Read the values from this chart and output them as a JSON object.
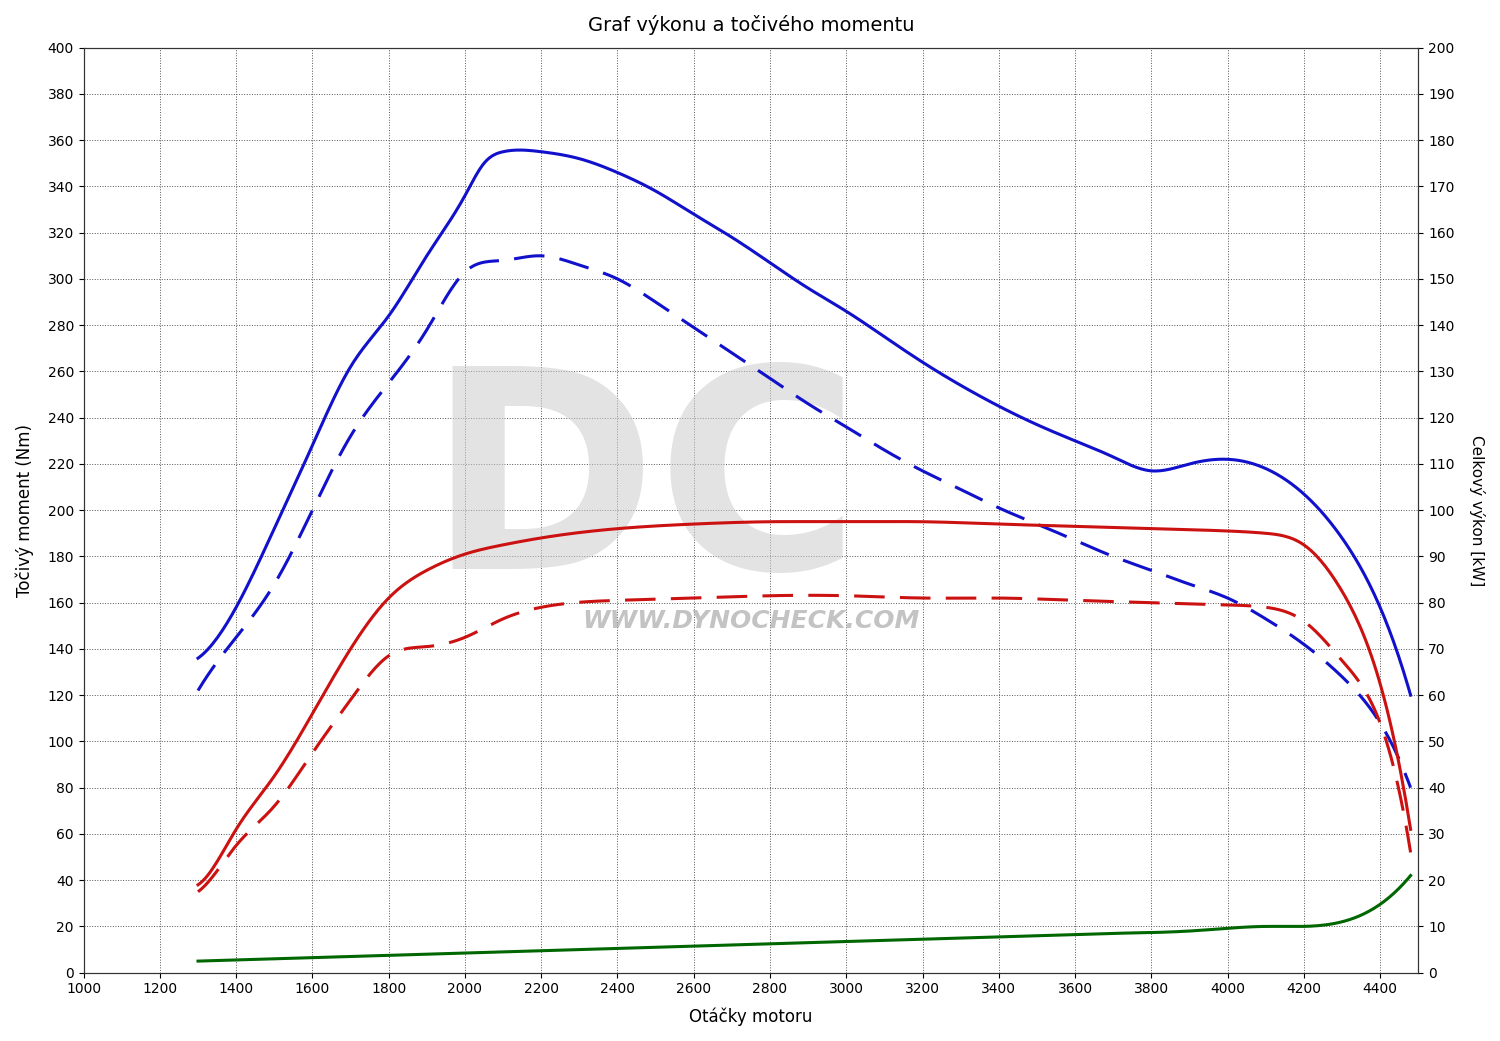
{
  "title": "Graf výkonu a točivého momentu",
  "xlabel": "Otáčky motoru",
  "ylabel_left": "Točivý moment (Nm)",
  "ylabel_right": "Celkový výkon [kW]",
  "xlim": [
    1000,
    4500
  ],
  "ylim_left": [
    0,
    400
  ],
  "ylim_right": [
    0,
    200
  ],
  "xticks": [
    1000,
    1200,
    1400,
    1600,
    1800,
    2000,
    2200,
    2400,
    2600,
    2800,
    3000,
    3200,
    3400,
    3600,
    3800,
    4000,
    4200,
    4400
  ],
  "yticks_left": [
    0,
    20,
    40,
    60,
    80,
    100,
    120,
    140,
    160,
    180,
    200,
    220,
    240,
    260,
    280,
    300,
    320,
    340,
    360,
    380,
    400
  ],
  "yticks_right": [
    0,
    10,
    20,
    30,
    40,
    50,
    60,
    70,
    80,
    90,
    100,
    110,
    120,
    130,
    140,
    150,
    160,
    170,
    180,
    190,
    200
  ],
  "background_color": "#ffffff",
  "plot_bg_color": "#f0f0f0",
  "grid_color": "#555555",
  "blue_solid_rpm": [
    1300,
    1400,
    1500,
    1600,
    1700,
    1800,
    1900,
    2000,
    2050,
    2100,
    2200,
    2300,
    2400,
    2500,
    2600,
    2700,
    2800,
    2900,
    3000,
    3100,
    3200,
    3300,
    3400,
    3500,
    3600,
    3700,
    3800,
    3900,
    4000,
    4100,
    4200,
    4300,
    4400,
    4480
  ],
  "blue_solid_val": [
    136,
    158,
    192,
    228,
    262,
    284,
    310,
    336,
    350,
    355,
    355,
    352,
    346,
    338,
    328,
    318,
    307,
    296,
    286,
    275,
    264,
    254,
    245,
    237,
    230,
    223,
    217,
    220,
    222,
    218,
    207,
    188,
    158,
    120
  ],
  "blue_dashed_rpm": [
    1300,
    1400,
    1500,
    1600,
    1700,
    1800,
    1900,
    2000,
    2100,
    2200,
    2300,
    2400,
    2500,
    2600,
    2700,
    2800,
    2900,
    3000,
    3100,
    3200,
    3300,
    3400,
    3500,
    3600,
    3700,
    3800,
    3900,
    4000,
    4100,
    4200,
    4300,
    4400,
    4480
  ],
  "blue_dashed_val": [
    122,
    145,
    168,
    200,
    232,
    255,
    278,
    303,
    308,
    310,
    306,
    300,
    290,
    279,
    268,
    257,
    246,
    236,
    226,
    217,
    209,
    201,
    194,
    187,
    180,
    174,
    168,
    162,
    153,
    142,
    128,
    108,
    80
  ],
  "red_solid_rpm": [
    1300,
    1350,
    1400,
    1500,
    1600,
    1700,
    1800,
    1900,
    2000,
    2100,
    2200,
    2400,
    2600,
    2800,
    3000,
    3200,
    3400,
    3600,
    3800,
    4000,
    4100,
    4200,
    4300,
    4400,
    4480
  ],
  "red_solid_val": [
    38,
    48,
    62,
    85,
    112,
    140,
    162,
    174,
    181,
    185,
    188,
    192,
    194,
    195,
    195,
    195,
    194,
    193,
    192,
    191,
    190,
    185,
    165,
    125,
    62
  ],
  "red_dashed_rpm": [
    1300,
    1350,
    1400,
    1500,
    1600,
    1700,
    1800,
    1900,
    2000,
    2100,
    2200,
    2400,
    2600,
    2800,
    3000,
    3200,
    3400,
    3600,
    3800,
    4000,
    4100,
    4200,
    4300,
    4400,
    4480
  ],
  "red_dashed_val": [
    35,
    44,
    55,
    72,
    95,
    118,
    137,
    141,
    145,
    153,
    158,
    161,
    162,
    163,
    163,
    162,
    162,
    161,
    160,
    159,
    158,
    152,
    135,
    108,
    52
  ],
  "green_rpm": [
    1300,
    1500,
    1700,
    1900,
    2100,
    2300,
    2500,
    2700,
    2900,
    3100,
    3300,
    3500,
    3700,
    3900,
    4100,
    4300,
    4480
  ],
  "green_val": [
    5,
    6,
    7,
    8,
    9,
    10,
    11,
    12,
    13,
    14,
    15,
    16,
    17,
    18,
    20,
    22,
    42
  ],
  "color_blue": "#1111cc",
  "color_red": "#cc1111",
  "color_green": "#006600",
  "line_width": 2.2,
  "watermark_text": "WWW.DYNOCHECK.COM",
  "watermark_dc": "DC"
}
